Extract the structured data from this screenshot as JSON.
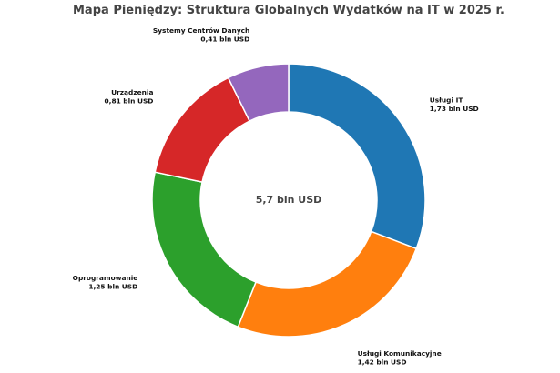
{
  "chart_data": {
    "type": "pie",
    "style": "donut",
    "title": "Mapa Pieniędzy: Struktura Globalnych Wydatków na IT w 2025 r.",
    "center_label": "5,7 bln USD",
    "slices": [
      {
        "name": "Usługi IT",
        "value": 1.73,
        "value_label": "1,73 bln USD",
        "color": "#1f77b4"
      },
      {
        "name": "Usługi Komunikacyjne",
        "value": 1.42,
        "value_label": "1,42 bln USD",
        "color": "#ff7f0e"
      },
      {
        "name": "Oprogramowanie",
        "value": 1.25,
        "value_label": "1,25 bln USD",
        "color": "#2ca02c"
      },
      {
        "name": "Urządzenia",
        "value": 0.81,
        "value_label": "0,81 bln USD",
        "color": "#d62728"
      },
      {
        "name": "Systemy Centrów Danych",
        "value": 0.41,
        "value_label": "0,41 bln USD",
        "color": "#9467bd"
      }
    ]
  }
}
